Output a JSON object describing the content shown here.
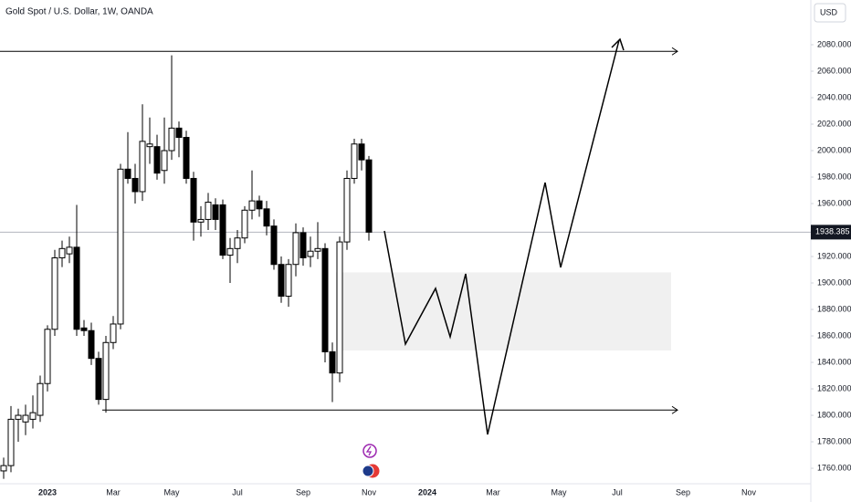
{
  "chart_data": {
    "type": "candlestick",
    "title": "Gold Spot / U.S. Dollar, 1W, OANDA",
    "currency": "USD",
    "categories": [
      null,
      null,
      null,
      null,
      null,
      null,
      "2023",
      null,
      null,
      null,
      null,
      null,
      null,
      null,
      null,
      "Mar",
      null,
      null,
      null,
      null,
      null,
      null,
      null,
      "May",
      null,
      null,
      null,
      null,
      null,
      null,
      null,
      null,
      "Jul",
      null,
      null,
      null,
      null,
      null,
      null,
      null,
      null,
      "Sep",
      null,
      null,
      null,
      null,
      null,
      null,
      null,
      null,
      "Nov",
      null,
      null,
      null,
      null,
      null,
      null,
      null,
      "2024",
      null,
      null,
      null,
      null,
      null,
      null,
      null,
      null,
      "Mar",
      null,
      null,
      null,
      null,
      null,
      null,
      null,
      null,
      "May",
      null,
      null,
      null,
      null,
      null,
      null,
      null,
      "Jul",
      null,
      null,
      null,
      null,
      null,
      null,
      null,
      null,
      "Sep",
      null,
      null,
      null,
      null,
      null,
      null,
      null,
      null,
      "Nov",
      null,
      null,
      null,
      null,
      null,
      null,
      null
    ],
    "open": [
      1758,
      1762,
      1797,
      1795,
      1797,
      1800,
      1824,
      1865,
      1919,
      1922,
      1927,
      1866,
      1864,
      1843,
      1812,
      1855,
      1869,
      1986,
      1979,
      1969,
      2003,
      2003,
      1985,
      2000,
      2017,
      2010,
      1979,
      1946,
      1948,
      1959,
      1959,
      1921,
      1926,
      1934,
      1955,
      1962,
      1956,
      1943,
      1914,
      1890,
      1914,
      1938,
      1920,
      1924,
      1926,
      1848,
      1832,
      1931,
      1979,
      2005,
      1993,
      null,
      null,
      null,
      null,
      null,
      null,
      null,
      null,
      null,
      null,
      null,
      null,
      null,
      null,
      null,
      null,
      null,
      null,
      null,
      null,
      null,
      null,
      null,
      null,
      null,
      null,
      null,
      null,
      null,
      null,
      null,
      null,
      null,
      null,
      null,
      null,
      null,
      null,
      null,
      null,
      null,
      null,
      null,
      null,
      null,
      null,
      null,
      null,
      null,
      null,
      null,
      null,
      null,
      null,
      null,
      null,
      null,
      null,
      null
    ],
    "high": [
      1768,
      1807,
      1805,
      1808,
      1815,
      1830,
      1868,
      1925,
      1932,
      1935,
      1959,
      1872,
      1870,
      1848,
      1860,
      1875,
      1990,
      2014,
      1990,
      2035,
      2025,
      2012,
      2025,
      2072,
      2022,
      2015,
      1984,
      1958,
      1968,
      1964,
      1963,
      1934,
      1940,
      1958,
      1985,
      1966,
      1962,
      1948,
      1920,
      1918,
      1945,
      1942,
      1935,
      1946,
      1930,
      1855,
      1935,
      1985,
      2009,
      2009,
      1996,
      null,
      null,
      null,
      null,
      null,
      null,
      null,
      null,
      null,
      null,
      null,
      null,
      null,
      null,
      null,
      null,
      null,
      null,
      null,
      null,
      null,
      null,
      null,
      null,
      null,
      null,
      null,
      null,
      null,
      null,
      null,
      null,
      null,
      null,
      null,
      null,
      null,
      null,
      null,
      null,
      null,
      null,
      null,
      null,
      null,
      null,
      null,
      null,
      null,
      null,
      null,
      null,
      null,
      null,
      null,
      null,
      null,
      null,
      null
    ],
    "low": [
      1752,
      1757,
      1780,
      1785,
      1790,
      1795,
      1818,
      1860,
      1912,
      1915,
      1860,
      1860,
      1838,
      1808,
      1802,
      1850,
      1865,
      1975,
      1960,
      1962,
      1990,
      1978,
      1975,
      1993,
      1995,
      1975,
      1932,
      1935,
      1940,
      1940,
      1918,
      1900,
      1915,
      1930,
      1948,
      1950,
      1936,
      1910,
      1885,
      1882,
      1905,
      1913,
      1912,
      1918,
      1840,
      1810,
      1825,
      1925,
      1975,
      1985,
      1932,
      null,
      null,
      null,
      null,
      null,
      null,
      null,
      null,
      null,
      null,
      null,
      null,
      null,
      null,
      null,
      null,
      null,
      null,
      null,
      null,
      null,
      null,
      null,
      null,
      null,
      null,
      null,
      null,
      null,
      null,
      null,
      null,
      null,
      null,
      null,
      null,
      null,
      null,
      null,
      null,
      null,
      null,
      null,
      null,
      null,
      null,
      null,
      null,
      null,
      null,
      null,
      null,
      null,
      null,
      null,
      null,
      null,
      null,
      null
    ],
    "close": [
      1762,
      1797,
      1800,
      1800,
      1802,
      1824,
      1865,
      1919,
      1926,
      1927,
      1865,
      1864,
      1843,
      1812,
      1855,
      1869,
      1986,
      1979,
      1969,
      2007,
      2005,
      1983,
      2000,
      2017,
      2010,
      1979,
      1946,
      1948,
      1961,
      1948,
      1921,
      1926,
      1934,
      1955,
      1962,
      1956,
      1943,
      1914,
      1890,
      1914,
      1938,
      1919,
      1924,
      1926,
      1848,
      1832,
      1931,
      1979,
      2005,
      1993,
      1938.385,
      null,
      null,
      null,
      null,
      null,
      null,
      null,
      null,
      null,
      null,
      null,
      null,
      null,
      null,
      null,
      null,
      null,
      null,
      null,
      null,
      null,
      null,
      null,
      null,
      null,
      null,
      null,
      null,
      null,
      null,
      null,
      null,
      null,
      null,
      null,
      null,
      null,
      null,
      null,
      null,
      null,
      null,
      null,
      null,
      null,
      null,
      null,
      null,
      null,
      null,
      null,
      null,
      null,
      null,
      null,
      null,
      null,
      null,
      null
    ],
    "up_color": "#ffffff",
    "down_color": "#000000",
    "last_price": 1938.385,
    "levels": [
      2075,
      1804
    ],
    "zone": [
      1849,
      1908
    ],
    "ylim": [
      1748.3,
      2113.8
    ],
    "yticks": [
      {
        "value": 1760,
        "label": "1760.000"
      },
      {
        "value": 1780,
        "label": "1780.000"
      },
      {
        "value": 1800,
        "label": "1800.000"
      },
      {
        "value": 1820,
        "label": "1820.000"
      },
      {
        "value": 1840,
        "label": "1840.000"
      },
      {
        "value": 1860,
        "label": "1860.000"
      },
      {
        "value": 1880,
        "label": "1880.000"
      },
      {
        "value": 1900,
        "label": "1900.000"
      },
      {
        "value": 1920,
        "label": "1920.000"
      },
      {
        "value": 1940,
        "label": "1940.000"
      },
      {
        "value": 1960,
        "label": "1960.000"
      },
      {
        "value": 1980,
        "label": "1980.000"
      },
      {
        "value": 2000,
        "label": "2000.000"
      },
      {
        "value": 2020,
        "label": "2020.000"
      },
      {
        "value": 2040,
        "label": "2040.000"
      },
      {
        "value": 2060,
        "label": "2060.000"
      },
      {
        "value": 2080,
        "label": "2080.000"
      }
    ],
    "grid": false
  }
}
